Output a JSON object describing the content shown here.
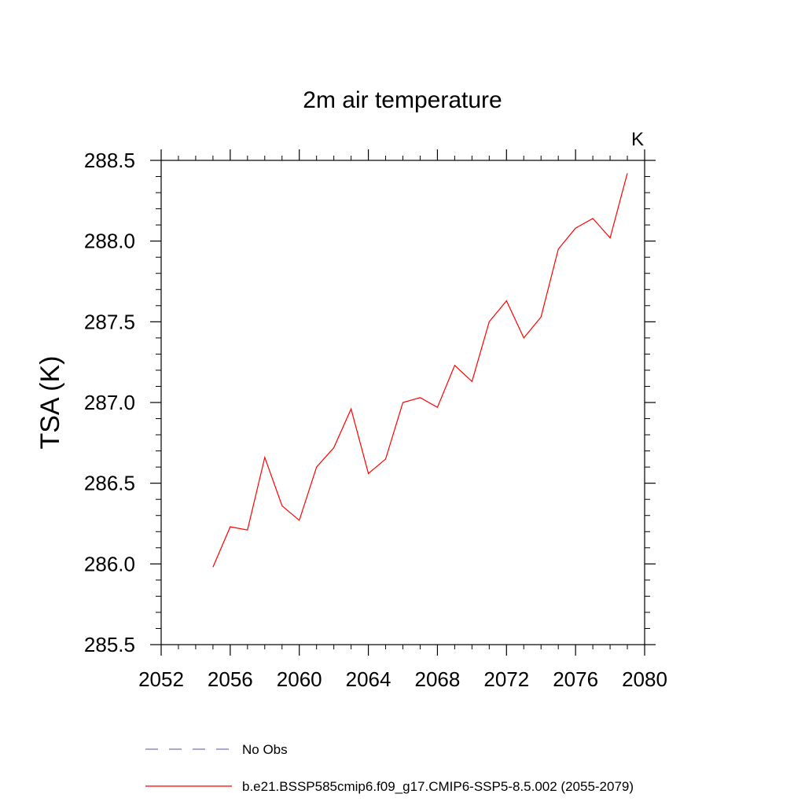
{
  "chart_data": {
    "type": "line",
    "title": "2m air temperature",
    "units_label": "K",
    "xlabel": "",
    "ylabel": "TSA  (K)",
    "xlim": [
      2052,
      2080
    ],
    "ylim": [
      285.5,
      288.5
    ],
    "x_ticks": [
      2052,
      2056,
      2060,
      2064,
      2068,
      2072,
      2076,
      2080
    ],
    "x_tick_labels": [
      "2052",
      "2056",
      "2060",
      "2064",
      "2068",
      "2072",
      "2076",
      "2080"
    ],
    "y_ticks": [
      285.5,
      286.0,
      286.5,
      287.0,
      287.5,
      288.0,
      288.5
    ],
    "y_tick_labels": [
      "285.5",
      "286.0",
      "286.5",
      "287.0",
      "287.5",
      "288.0",
      "288.5"
    ],
    "grid": false,
    "series": [
      {
        "name": "b.e21.BSSP585cmip6.f09_g17.CMIP6-SSP5-8.5.002 (2055-2079)",
        "color": "#ff0000",
        "style": "solid",
        "x": [
          2055,
          2056,
          2057,
          2058,
          2059,
          2060,
          2061,
          2062,
          2063,
          2064,
          2065,
          2066,
          2067,
          2068,
          2069,
          2070,
          2071,
          2072,
          2073,
          2074,
          2075,
          2076,
          2077,
          2078,
          2079
        ],
        "values": [
          285.98,
          286.23,
          286.21,
          286.66,
          286.36,
          286.27,
          286.6,
          286.72,
          286.96,
          286.56,
          286.65,
          287.0,
          287.03,
          286.97,
          287.23,
          287.13,
          287.5,
          287.63,
          287.4,
          287.53,
          287.95,
          288.08,
          288.14,
          288.02,
          288.42
        ]
      }
    ],
    "legend": [
      {
        "label": "No Obs",
        "color": "#7b72b8",
        "style": "dashed"
      },
      {
        "label": "b.e21.BSSP585cmip6.f09_g17.CMIP6-SSP5-8.5.002 (2055-2079)",
        "color": "#ff0000",
        "style": "solid"
      }
    ]
  }
}
